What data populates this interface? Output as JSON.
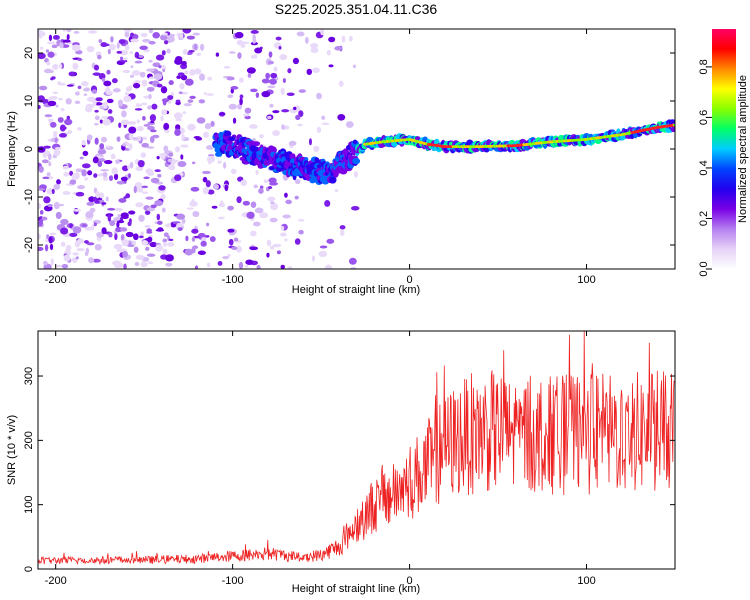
{
  "figure_title": "S225.2025.351.04.11.C36",
  "chart_data": [
    {
      "type": "heatmap",
      "title": "S225.2025.351.04.11.C36",
      "xlabel": "Height of straight line (km)",
      "ylabel": "Frequency (Hz)",
      "xlim": [
        -210,
        150
      ],
      "ylim": [
        -25,
        25
      ],
      "xticks": [
        -200,
        -100,
        0,
        100
      ],
      "yticks": [
        -20,
        -10,
        0,
        10,
        20
      ],
      "colorbar": {
        "label": "Normalized spectral amplitude",
        "range": [
          0.0,
          0.95
        ],
        "ticks": [
          0.0,
          0.2,
          0.4,
          0.6,
          0.8
        ],
        "colormap": [
          "#ffffff",
          "#e6d2f7",
          "#b57ff0",
          "#7a00e6",
          "#2200ee",
          "#0044ff",
          "#00ccff",
          "#00ff66",
          "#88ff00",
          "#ffff00",
          "#ff8800",
          "#ff0000",
          "#ff0066"
        ]
      },
      "ridge": {
        "x": [
          -100,
          -80,
          -60,
          -45,
          -35,
          -25,
          -15,
          0,
          10,
          20,
          40,
          60,
          80,
          100,
          120,
          140,
          150
        ],
        "y": [
          1,
          -2,
          -4,
          -5,
          -2,
          1,
          1.5,
          2,
          1,
          0.5,
          0.5,
          0.7,
          1.5,
          2,
          3,
          4.5,
          5
        ]
      }
    },
    {
      "type": "line",
      "xlabel": "Height of straight line (km)",
      "ylabel": "SNR (10 * v/v)",
      "xlim": [
        -210,
        150
      ],
      "ylim": [
        0,
        370
      ],
      "xticks": [
        -200,
        -100,
        0,
        100
      ],
      "yticks": [
        0,
        100,
        200,
        300
      ],
      "color": "#ee2222",
      "envelope": {
        "x": [
          -210,
          -150,
          -120,
          -100,
          -80,
          -60,
          -50,
          -40,
          -30,
          -20,
          -10,
          0,
          10,
          20,
          30,
          40,
          60,
          80,
          100,
          120,
          140,
          150
        ],
        "mean": [
          13,
          14,
          16,
          20,
          24,
          18,
          22,
          35,
          70,
          100,
          115,
          135,
          160,
          190,
          205,
          215,
          210,
          208,
          210,
          210,
          215,
          212
        ]
      }
    }
  ]
}
